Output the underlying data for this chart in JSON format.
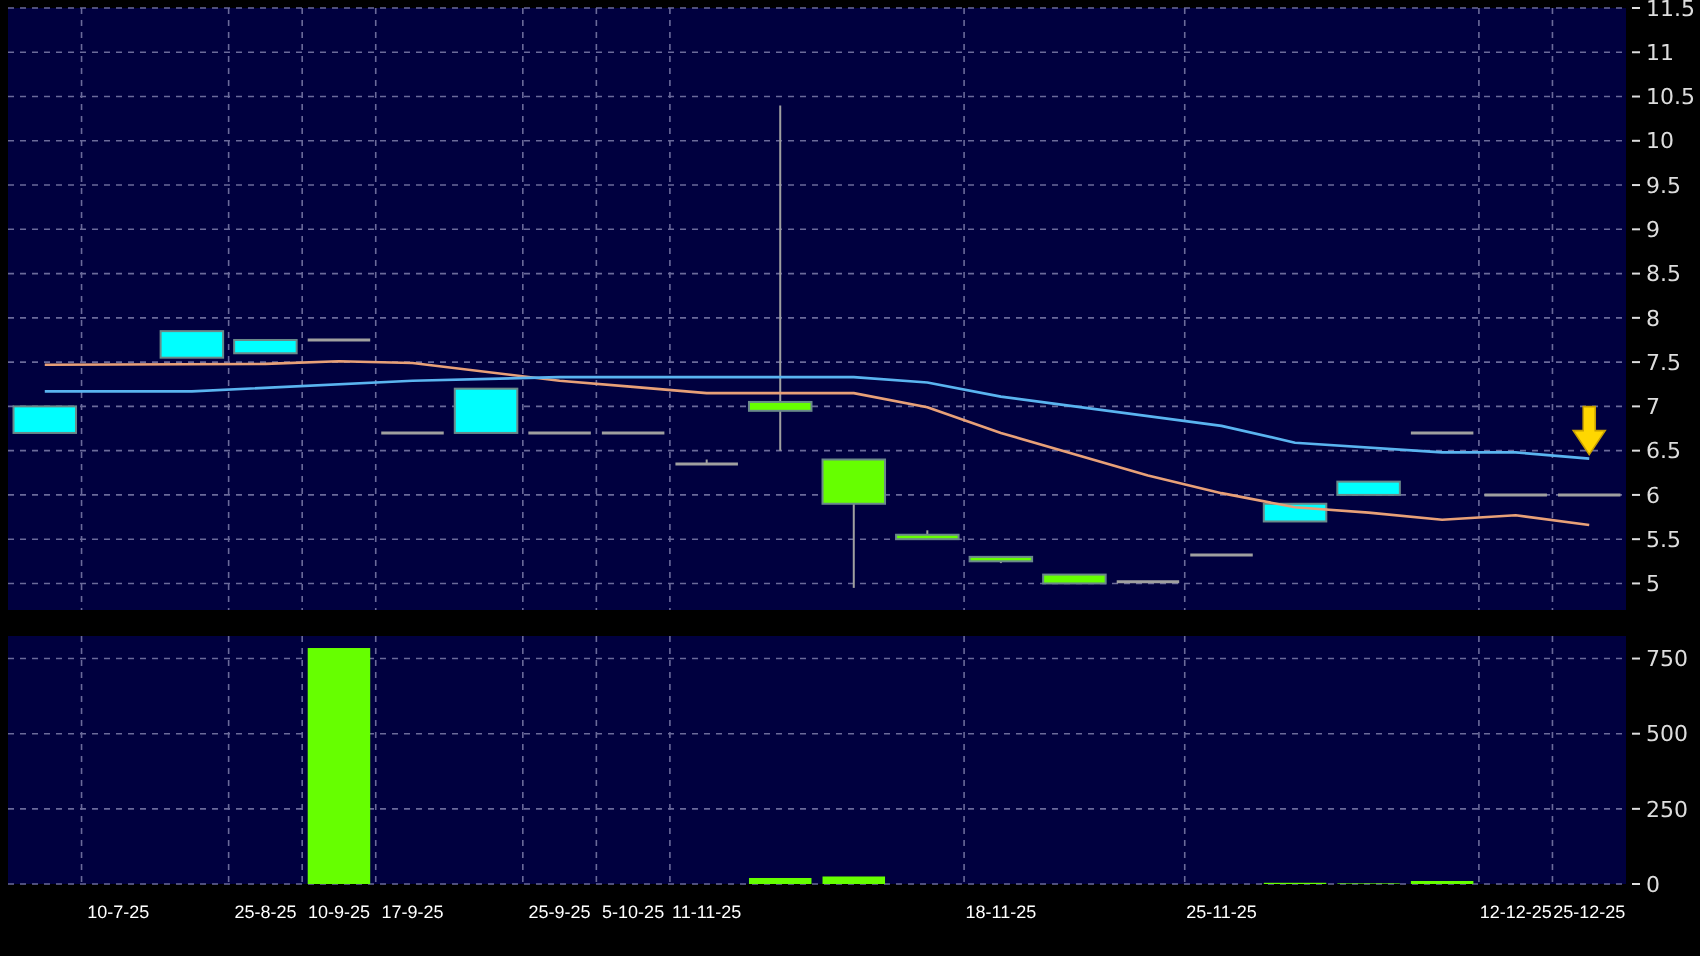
{
  "chart_data": [
    {
      "type": "candlestick",
      "categories": [
        null,
        null,
        null,
        null,
        null,
        null,
        null,
        null,
        null,
        null,
        null,
        null,
        null,
        null,
        null,
        null,
        null,
        null,
        null,
        null,
        null,
        null
      ],
      "ohlc": [
        [
          6.7,
          7.0,
          6.7,
          7.0
        ],
        null,
        [
          7.55,
          7.85,
          7.55,
          7.85
        ],
        [
          7.6,
          7.75,
          7.6,
          7.75
        ],
        [
          7.75,
          7.75,
          7.75,
          7.75
        ],
        [
          6.7,
          6.7,
          6.7,
          6.7
        ],
        [
          6.7,
          7.2,
          6.7,
          7.2
        ],
        [
          6.7,
          6.7,
          6.7,
          6.7
        ],
        [
          6.7,
          6.7,
          6.7,
          6.7
        ],
        [
          6.35,
          6.4,
          6.35,
          6.35
        ],
        [
          7.05,
          10.4,
          6.5,
          6.95
        ],
        [
          6.4,
          6.4,
          4.95,
          5.9
        ],
        [
          5.55,
          5.6,
          5.5,
          5.5
        ],
        [
          5.3,
          5.3,
          5.23,
          5.25
        ],
        [
          5.1,
          5.1,
          5.0,
          5.0
        ],
        [
          5.02,
          5.02,
          5.02,
          5.02
        ],
        [
          5.32,
          5.32,
          5.32,
          5.32
        ],
        [
          5.7,
          5.9,
          5.7,
          5.9
        ],
        [
          6.0,
          6.15,
          6.0,
          6.15
        ],
        [
          6.7,
          6.7,
          6.7,
          6.7
        ],
        [
          6.0,
          6.0,
          6.0,
          6.0
        ],
        [
          6.0,
          6.0,
          6.0,
          6.0
        ]
      ],
      "colors": [
        "#00ffff",
        null,
        "#00ffff",
        "#00ffff",
        "#a0a0a0",
        "#a0a0a0",
        "#00ffff",
        "#a0a0a0",
        "#a0a0a0",
        "#a0a0a0",
        "#66ff00",
        "#66ff00",
        "#66ff00",
        "#66ff00",
        "#66ff00",
        "#a0a0a0",
        "#a0a0a0",
        "#00ffff",
        "#00ffff",
        "#a0a0a0",
        "#a0a0a0",
        "#a0a0a0"
      ],
      "series": [
        {
          "type": "line",
          "color": "#e8a078",
          "values": [
            7.47,
            null,
            null,
            7.48,
            7.51,
            7.49,
            null,
            7.29,
            7.22,
            7.15,
            null,
            7.15,
            6.99,
            6.7,
            null,
            6.22,
            6.02,
            5.86,
            5.8,
            5.72,
            5.77,
            5.66
          ]
        },
        {
          "type": "line",
          "color": "#5ab4f0",
          "values": [
            7.17,
            null,
            7.17,
            null,
            null,
            7.29,
            null,
            7.33,
            null,
            null,
            null,
            7.33,
            7.27,
            7.11,
            null,
            null,
            6.78,
            6.59,
            null,
            6.48,
            6.48,
            6.41
          ]
        }
      ],
      "ylim": [
        4.7,
        11.5
      ],
      "yticks": [
        5,
        5.5,
        6,
        6.5,
        7,
        7.5,
        8,
        8.5,
        9,
        9.5,
        10,
        10.5,
        11,
        11.5
      ],
      "grid": true,
      "tick_labels": "y"
    },
    {
      "type": "bar",
      "categories": [
        null,
        "10-7-25",
        null,
        "25-8-25",
        "10-9-25",
        "17-9-25",
        null,
        "25-9-25",
        "5-10-25",
        "11-11-25",
        null,
        null,
        null,
        "18-11-25",
        null,
        null,
        "25-11-25",
        null,
        null,
        null,
        "12-12-25",
        "25-12-25"
      ],
      "values": [
        null,
        null,
        null,
        null,
        785,
        null,
        null,
        null,
        null,
        null,
        20,
        25,
        null,
        null,
        null,
        null,
        null,
        4,
        2,
        10,
        null,
        null
      ],
      "color": "#66ff00",
      "ylim": [
        0,
        825
      ],
      "yticks": [
        0,
        250,
        500,
        750
      ],
      "grid": true
    }
  ]
}
